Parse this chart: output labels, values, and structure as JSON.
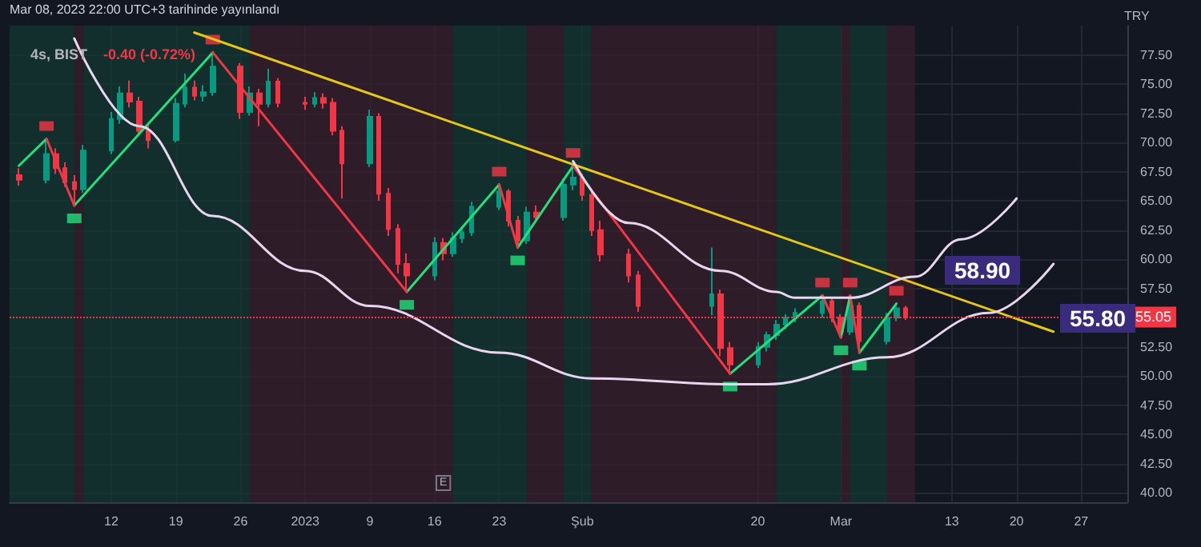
{
  "chart_data": {
    "type": "candlestick",
    "title": "4s, BIST",
    "subtitle": "-0.40 (-0.72%)",
    "ylabel": "TRY",
    "annotations": [
      "Mar 08, 2023 22:00 UTC+3 tarihinde yayınlandı",
      "58.90",
      "55.80",
      "E"
    ],
    "x": [
      "2022-12-02",
      "2022-12-05",
      "2022-12-06",
      "2022-12-07",
      "2022-12-08",
      "2022-12-09",
      "2022-12-12",
      "2022-12-13",
      "2022-12-14",
      "2022-12-15",
      "2022-12-16",
      "2022-12-19",
      "2022-12-20",
      "2022-12-21",
      "2022-12-22",
      "2022-12-23",
      "2022-12-26",
      "2022-12-27",
      "2022-12-28",
      "2022-12-29",
      "2022-12-30",
      "2023-01-02",
      "2023-01-03",
      "2023-01-04",
      "2023-01-05",
      "2023-01-06",
      "2023-01-09",
      "2023-01-10",
      "2023-01-11",
      "2023-01-12",
      "2023-01-13",
      "2023-01-16",
      "2023-01-17",
      "2023-01-18",
      "2023-01-19",
      "2023-01-20",
      "2023-01-23",
      "2023-01-24",
      "2023-01-25",
      "2023-01-26",
      "2023-01-27",
      "2023-01-30",
      "2023-01-31",
      "2023-02-01",
      "2023-02-02",
      "2023-02-03",
      "2023-02-06",
      "2023-02-07",
      "2023-02-15",
      "2023-02-16",
      "2023-02-17",
      "2023-02-20",
      "2023-02-21",
      "2023-02-22",
      "2023-02-23",
      "2023-02-24",
      "2023-02-27",
      "2023-02-28",
      "2023-03-01",
      "2023-03-02",
      "2023-03-03",
      "2023-03-06",
      "2023-03-07",
      "2023-03-08"
    ],
    "ohlc": [
      [
        67.2,
        67.8,
        66.3,
        66.8
      ],
      [
        66.8,
        70.3,
        66.5,
        69.0
      ],
      [
        69.0,
        69.5,
        67.3,
        67.8
      ],
      [
        67.8,
        68.3,
        66.2,
        66.6
      ],
      [
        66.6,
        67.2,
        64.6,
        66.0
      ],
      [
        66.0,
        69.8,
        65.7,
        69.3
      ],
      [
        69.3,
        72.6,
        69.0,
        72.0
      ],
      [
        72.0,
        74.8,
        71.6,
        74.2
      ],
      [
        74.2,
        75.3,
        73.0,
        73.5
      ],
      [
        73.5,
        73.9,
        70.6,
        71.0
      ],
      [
        71.0,
        71.5,
        69.5,
        70.2
      ],
      [
        70.2,
        73.8,
        70.0,
        73.3
      ],
      [
        73.3,
        75.9,
        73.0,
        74.7
      ],
      [
        74.7,
        75.3,
        73.6,
        74.0
      ],
      [
        74.0,
        74.9,
        73.5,
        74.3
      ],
      [
        74.3,
        77.7,
        74.0,
        76.5
      ],
      [
        76.5,
        76.8,
        72.0,
        72.6
      ],
      [
        72.6,
        74.8,
        72.3,
        74.2
      ],
      [
        74.2,
        74.6,
        71.4,
        73.3
      ],
      [
        73.3,
        76.3,
        73.0,
        75.2
      ],
      [
        75.2,
        75.5,
        73.0,
        73.4
      ],
      [
        73.4,
        73.9,
        72.8,
        73.3
      ],
      [
        73.3,
        74.3,
        73.0,
        73.8
      ],
      [
        73.8,
        74.2,
        72.9,
        73.4
      ],
      [
        73.4,
        73.8,
        70.6,
        71.0
      ],
      [
        71.0,
        71.4,
        65.2,
        68.2
      ],
      [
        68.2,
        72.8,
        67.9,
        72.2
      ],
      [
        72.2,
        72.5,
        65.0,
        65.6
      ],
      [
        65.6,
        66.1,
        62.0,
        62.6
      ],
      [
        62.6,
        63.0,
        58.8,
        59.6
      ],
      [
        59.6,
        60.5,
        57.2,
        58.6
      ],
      [
        58.6,
        61.9,
        58.2,
        61.4
      ],
      [
        61.4,
        61.8,
        59.9,
        60.5
      ],
      [
        60.5,
        62.3,
        60.2,
        61.8
      ],
      [
        61.8,
        62.8,
        61.4,
        62.3
      ],
      [
        62.3,
        64.9,
        62.0,
        64.5
      ],
      [
        64.5,
        66.4,
        64.2,
        65.8
      ],
      [
        65.8,
        66.0,
        62.8,
        63.3
      ],
      [
        63.3,
        63.7,
        61.0,
        61.6
      ],
      [
        61.6,
        64.5,
        61.3,
        64.0
      ],
      [
        64.0,
        64.6,
        63.2,
        63.6
      ],
      [
        63.6,
        66.9,
        63.3,
        66.4
      ],
      [
        66.4,
        68.0,
        65.9,
        67.0
      ],
      [
        67.0,
        67.3,
        65.0,
        65.5
      ],
      [
        65.5,
        65.8,
        62.0,
        62.5
      ],
      [
        62.5,
        63.3,
        59.8,
        60.4
      ],
      [
        60.4,
        60.9,
        58.0,
        58.6
      ],
      [
        58.6,
        59.0,
        55.5,
        56.0
      ],
      [
        56.0,
        61.0,
        55.2,
        57.0
      ],
      [
        57.0,
        57.4,
        51.7,
        52.4
      ],
      [
        52.4,
        52.9,
        50.2,
        51.0
      ],
      [
        51.0,
        52.9,
        50.7,
        52.5
      ],
      [
        52.5,
        53.8,
        52.1,
        53.5
      ],
      [
        53.5,
        54.8,
        53.1,
        54.4
      ],
      [
        54.4,
        55.3,
        54.0,
        55.0
      ],
      [
        55.0,
        55.8,
        54.6,
        55.4
      ],
      [
        55.4,
        56.9,
        55.0,
        56.4
      ],
      [
        56.4,
        56.7,
        54.6,
        55.0
      ],
      [
        55.0,
        55.3,
        53.3,
        53.8
      ],
      [
        53.8,
        56.9,
        53.5,
        56.0
      ],
      [
        56.0,
        56.3,
        52.0,
        53.0
      ],
      [
        53.0,
        55.4,
        52.7,
        55.0
      ],
      [
        55.0,
        56.2,
        54.7,
        55.8
      ],
      [
        55.8,
        56.0,
        54.8,
        55.05
      ]
    ],
    "colors": [
      "#f23645",
      "#089981",
      "#f23645",
      "#f23645",
      "#f23645",
      "#089981",
      "#089981",
      "#089981",
      "#f23645",
      "#f23645",
      "#f23645",
      "#089981",
      "#089981",
      "#f23645",
      "#089981",
      "#089981",
      "#f23645",
      "#089981",
      "#f23645",
      "#089981",
      "#f23645",
      "#f23645",
      "#089981",
      "#f23645",
      "#f23645",
      "#f23645",
      "#089981",
      "#f23645",
      "#f23645",
      "#f23645",
      "#f23645",
      "#089981",
      "#f23645",
      "#089981",
      "#089981",
      "#089981",
      "#089981",
      "#f23645",
      "#f23645",
      "#089981",
      "#f23645",
      "#089981",
      "#089981",
      "#f23645",
      "#f23645",
      "#f23645",
      "#f23645",
      "#f23645",
      "#089981",
      "#f23645",
      "#f23645",
      "#089981",
      "#089981",
      "#089981",
      "#089981",
      "#089981",
      "#089981",
      "#f23645",
      "#f23645",
      "#089981",
      "#f23645",
      "#089981",
      "#089981",
      "#f23645"
    ],
    "series": [
      {
        "type": "line",
        "color": "#22e07a",
        "marker": "none",
        "x": [
          "2022-12-02",
          "2022-12-05",
          "2022-12-06",
          "2022-12-08",
          "2022-12-23",
          "2022-12-28",
          "2023-01-13",
          "2023-01-23",
          "2023-01-24",
          "2023-01-25",
          "2023-01-31",
          "2023-02-06",
          "2023-02-17",
          "2023-02-27",
          "2023-02-28",
          "2023-03-01",
          "2023-03-02",
          "2023-03-02T12:00",
          "2023-03-03",
          "2023-03-07"
        ],
        "values": [
          68.0,
          70.3,
          null,
          64.6,
          77.7,
          null,
          57.2,
          66.4,
          null,
          61.0,
          68.0,
          null,
          50.2,
          56.9,
          null,
          53.3,
          56.9,
          null,
          52.0,
          56.2
        ]
      },
      {
        "type": "line",
        "color": "#f23645",
        "marker": "none",
        "x": [
          "2022-12-05",
          "2022-12-08",
          "2022-12-15",
          "2022-12-23",
          "2023-01-13",
          "2023-01-18",
          "2023-01-23",
          "2023-01-25",
          "2023-01-27",
          "2023-01-31",
          "2023-02-17",
          "2023-02-20",
          "2023-02-27",
          "2023-03-01",
          "2023-03-01T12:00",
          "2023-03-02",
          "2023-03-03"
        ],
        "values": [
          70.3,
          64.6,
          null,
          77.7,
          57.2,
          null,
          66.4,
          61.0,
          null,
          68.0,
          50.2,
          null,
          56.9,
          53.3,
          null,
          56.9,
          52.0
        ]
      },
      {
        "type": "line",
        "color": "#e6c619",
        "marker": "none",
        "x": [
          "2022-12-21",
          "2023-03-24"
        ],
        "values": [
          79.4,
          53.8
        ]
      },
      {
        "type": "line",
        "color": "#e9d5ef",
        "marker": "none",
        "x": [
          "2022-12-08",
          "2022-12-15",
          "2022-12-23",
          "2023-01-02",
          "2023-01-09",
          "2023-01-23",
          "2023-02-02",
          "2023-02-17",
          "2023-02-21",
          "2023-03-06",
          "2023-03-17",
          "2023-03-24"
        ],
        "values": [
          78.9,
          71.4,
          63.7,
          59.0,
          56.0,
          52.0,
          49.8,
          49.3,
          49.3,
          51.6,
          55.4,
          59.6
        ]
      },
      {
        "type": "line",
        "color": "#e9d5ef",
        "marker": "none",
        "x": [
          "2023-01-31",
          "2023-02-06",
          "2023-02-16",
          "2023-02-22",
          "2023-02-24",
          "2023-03-02",
          "2023-03-09",
          "2023-03-14",
          "2023-03-20"
        ],
        "values": [
          68.4,
          63.1,
          59.0,
          57.2,
          56.7,
          56.7,
          58.5,
          61.7,
          65.2
        ]
      },
      {
        "type": "scatter",
        "color": "#f23645",
        "marker": "square",
        "x": [
          "2022-12-05",
          "2022-12-23",
          "2023-01-23",
          "2023-01-31",
          "2023-02-27",
          "2023-03-02",
          "2023-03-07"
        ],
        "values": [
          71.4,
          78.8,
          67.5,
          69.1,
          58.0,
          58.0,
          57.3
        ]
      },
      {
        "type": "scatter",
        "color": "#22e07a",
        "marker": "square",
        "x": [
          "2022-12-08",
          "2023-01-13",
          "2023-01-25",
          "2023-02-17",
          "2023-03-01",
          "2023-03-03"
        ],
        "values": [
          63.5,
          56.1,
          59.9,
          49.1,
          52.2,
          50.9
        ]
      }
    ],
    "xlim": [
      "2022-12-01",
      "2023-04-01"
    ],
    "xticks": [
      {
        "value": "2022-12-12",
        "label": "12"
      },
      {
        "value": "2022-12-19",
        "label": "19"
      },
      {
        "value": "2022-12-26",
        "label": "26"
      },
      {
        "value": "2023-01-02",
        "label": "2023"
      },
      {
        "value": "2023-01-09",
        "label": "9"
      },
      {
        "value": "2023-01-16",
        "label": "16"
      },
      {
        "value": "2023-01-23",
        "label": "23"
      },
      {
        "value": "2023-02-01",
        "label": "Şub"
      },
      {
        "value": "2023-02-20",
        "label": "20"
      },
      {
        "value": "2023-03-01",
        "label": "Mar"
      },
      {
        "value": "2023-03-13",
        "label": "13"
      },
      {
        "value": "2023-03-20",
        "label": "20"
      },
      {
        "value": "2023-03-27",
        "label": "27"
      }
    ],
    "ylim": [
      39.2,
      80
    ],
    "yticks": [
      {
        "value": 40,
        "label": "40.00"
      },
      {
        "value": 42.5,
        "label": "42.50"
      },
      {
        "value": 45,
        "label": "45.00"
      },
      {
        "value": 47.5,
        "label": "47.50"
      },
      {
        "value": 50,
        "label": "50.00"
      },
      {
        "value": 52.5,
        "label": "52.50"
      },
      {
        "value": 57.5,
        "label": "57.50"
      },
      {
        "value": 60,
        "label": "60.00"
      },
      {
        "value": 62.5,
        "label": "62.50"
      },
      {
        "value": 65,
        "label": "65.00"
      },
      {
        "value": 67.5,
        "label": "67.50"
      },
      {
        "value": 70,
        "label": "70.00"
      },
      {
        "value": 72.5,
        "label": "72.50"
      },
      {
        "value": 75,
        "label": "75.00"
      },
      {
        "value": 77.5,
        "label": "77.50"
      }
    ],
    "grid": true,
    "ref_lines": [
      {
        "axis": "y",
        "value": 55.05,
        "label": "55.05",
        "color": "#f23645",
        "line_style": "dotted"
      }
    ],
    "bands": [
      {
        "axis": "x",
        "from": "2022-12-01",
        "to": "2022-12-08",
        "color": "#143b32"
      },
      {
        "axis": "x",
        "from": "2022-12-08",
        "to": "2022-12-09",
        "color": "#3a1f2b"
      },
      {
        "axis": "x",
        "from": "2022-12-09",
        "to": "2022-12-27",
        "color": "#143b32"
      },
      {
        "axis": "x",
        "from": "2022-12-27",
        "to": "2023-01-18",
        "color": "#3a1f2b"
      },
      {
        "axis": "x",
        "from": "2023-01-18",
        "to": "2023-01-26",
        "color": "#143b32"
      },
      {
        "axis": "x",
        "from": "2023-01-26",
        "to": "2023-01-30",
        "color": "#3a1f2b"
      },
      {
        "axis": "x",
        "from": "2023-01-30",
        "to": "2023-02-02",
        "color": "#143b32"
      },
      {
        "axis": "x",
        "from": "2023-02-02",
        "to": "2023-02-22",
        "color": "#3a1f2b"
      },
      {
        "axis": "x",
        "from": "2023-02-22",
        "to": "2023-03-01",
        "color": "#143b32"
      },
      {
        "axis": "x",
        "from": "2023-03-01",
        "to": "2023-03-02",
        "color": "#3a1f2b"
      },
      {
        "axis": "x",
        "from": "2023-03-02",
        "to": "2023-03-06",
        "color": "#143b32"
      },
      {
        "axis": "x",
        "from": "2023-03-06",
        "to": "2023-03-09",
        "color": "#3a1f2b"
      }
    ]
  }
}
